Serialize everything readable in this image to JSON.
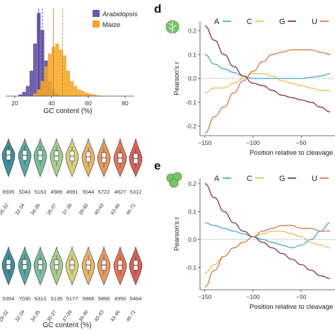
{
  "colors": {
    "arabidopsis": "#6a58a8",
    "maize": "#f5a623",
    "A": "#3aa3c4",
    "C": "#e8b84a",
    "G": "#7a2140",
    "U": "#d2703d",
    "leaf": "#7cc46a",
    "violin": [
      "#3f8f9a",
      "#5aa6a0",
      "#7cbf9a",
      "#a6cf8e",
      "#d6d27e",
      "#e7b56a",
      "#e79a5e",
      "#e2785a",
      "#d9605a"
    ]
  },
  "panel_labels": {
    "d": "d",
    "e": "e"
  },
  "icons": {
    "d": "leaf-icon",
    "e": "algae-cells-icon"
  },
  "chart_data": [
    {
      "id": "gc-histogram",
      "type": "bar",
      "xlabel": "GC content (%)",
      "x_ticks": [
        "20",
        "40",
        "60",
        "80"
      ],
      "xlim": [
        15,
        85
      ],
      "legend": [
        {
          "name": "Arabidopsis",
          "italic": true,
          "color_key": "arabidopsis"
        },
        {
          "name": "Maize",
          "italic": false,
          "color_key": "maize"
        }
      ],
      "legend_position": "top-right",
      "bin_width": 2,
      "series": [
        {
          "name": "Arabidopsis",
          "color_key": "arabidopsis",
          "bins": [
            [
              22,
              0.02
            ],
            [
              24,
              0.05
            ],
            [
              26,
              0.12
            ],
            [
              28,
              0.3
            ],
            [
              30,
              0.62
            ],
            [
              32,
              0.98
            ],
            [
              34,
              0.78
            ],
            [
              36,
              0.42
            ],
            [
              38,
              0.18
            ],
            [
              40,
              0.08
            ],
            [
              42,
              0.03
            ]
          ],
          "mean_line": 33,
          "median_line": 35
        },
        {
          "name": "Maize",
          "color_key": "maize",
          "bins": [
            [
              30,
              0.03
            ],
            [
              32,
              0.08
            ],
            [
              34,
              0.18
            ],
            [
              36,
              0.35
            ],
            [
              38,
              0.5
            ],
            [
              40,
              0.58
            ],
            [
              42,
              0.62
            ],
            [
              44,
              0.55
            ],
            [
              46,
              0.48
            ],
            [
              48,
              0.3
            ],
            [
              50,
              0.18
            ],
            [
              52,
              0.12
            ],
            [
              54,
              0.08
            ],
            [
              56,
              0.06
            ],
            [
              58,
              0.04
            ],
            [
              60,
              0.03
            ],
            [
              62,
              0.02
            ],
            [
              64,
              0.01
            ]
          ],
          "mean_line": 41,
          "median_line": 46
        }
      ]
    },
    {
      "id": "violins-top",
      "type": "violin",
      "categories": [
        "26-32",
        "32-34",
        "34-35",
        "35-37",
        "37-39",
        "39-40",
        "40-43",
        "43-46",
        "46-71"
      ],
      "counts": [
        "6935",
        "5043",
        "5163",
        "4989",
        "4991",
        "5044",
        "5722",
        "4827",
        "5312"
      ],
      "medians": [
        0.6,
        0.58,
        0.57,
        0.55,
        0.54,
        0.5,
        0.46,
        0.44,
        0.42
      ]
    },
    {
      "id": "violins-bottom",
      "type": "violin",
      "xlabel": "GC content (%)",
      "categories": [
        "29-32",
        "32-34",
        "34-35",
        "35-37",
        "37-39",
        "39-40",
        "40-43",
        "43-46",
        "46-71"
      ],
      "counts": [
        "5354",
        "7030",
        "5313",
        "5135",
        "5177",
        "5866",
        "5866",
        "4950",
        "5464"
      ],
      "medians": [
        0.52,
        0.52,
        0.51,
        0.51,
        0.5,
        0.5,
        0.5,
        0.49,
        0.49
      ]
    },
    {
      "id": "panel-d",
      "type": "line",
      "xlabel": "Position relative to cleavage si",
      "ylabel": "Pearson's r",
      "xlim": [
        -155,
        -15
      ],
      "ylim": [
        -0.24,
        0.24
      ],
      "x_ticks": [
        -150,
        -100,
        -50
      ],
      "y_ticks": [
        -0.2,
        -0.1,
        0,
        0.1,
        0.2
      ],
      "y_tick_labels": [
        "-0.2",
        "-0.1",
        "0.0",
        "0.1",
        "0.2"
      ],
      "legend": [
        "A",
        "C",
        "G",
        "U"
      ],
      "series": [
        {
          "name": "A",
          "color_key": "A",
          "x": [
            -150,
            -140,
            -130,
            -120,
            -110,
            -100,
            -90,
            -80,
            -70,
            -60,
            -50,
            -40,
            -30,
            -20
          ],
          "y": [
            0.1,
            0.06,
            0.04,
            0.025,
            0.01,
            0.0,
            0.0,
            0.0,
            0.0,
            0.0,
            0.0,
            0.005,
            0.01,
            0.02
          ]
        },
        {
          "name": "C",
          "color_key": "C",
          "x": [
            -150,
            -140,
            -130,
            -120,
            -110,
            -100,
            -90,
            -80,
            -70,
            -60,
            -50,
            -40,
            -30,
            -20
          ],
          "y": [
            -0.06,
            -0.04,
            -0.04,
            -0.02,
            0.0,
            0.02,
            0.02,
            0.01,
            -0.01,
            -0.02,
            -0.03,
            -0.04,
            -0.05,
            -0.05
          ]
        },
        {
          "name": "G",
          "color_key": "G",
          "x": [
            -150,
            -140,
            -130,
            -120,
            -110,
            -100,
            -90,
            -80,
            -70,
            -60,
            -50,
            -40,
            -30,
            -20
          ],
          "y": [
            0.22,
            0.16,
            0.1,
            0.05,
            0.01,
            -0.02,
            -0.03,
            -0.05,
            -0.07,
            -0.08,
            -0.09,
            -0.1,
            -0.12,
            -0.14
          ]
        },
        {
          "name": "U",
          "color_key": "U",
          "x": [
            -150,
            -140,
            -130,
            -120,
            -110,
            -100,
            -90,
            -80,
            -70,
            -60,
            -50,
            -40,
            -30,
            -20
          ],
          "y": [
            -0.23,
            -0.16,
            -0.12,
            -0.06,
            -0.01,
            0.03,
            0.07,
            0.1,
            0.11,
            0.12,
            0.12,
            0.12,
            0.11,
            0.1
          ]
        }
      ]
    },
    {
      "id": "panel-e",
      "type": "line",
      "xlabel": "Position relative to cleavage si",
      "ylabel": "Pearson's r",
      "xlim": [
        -155,
        -15
      ],
      "ylim": [
        -0.18,
        0.22
      ],
      "x_ticks": [
        -150,
        -100,
        -50
      ],
      "y_ticks": [
        -0.1,
        0,
        0.1,
        0.2
      ],
      "y_tick_labels": [
        "-0.1",
        "0.0",
        "0.1",
        "0.2"
      ],
      "legend": [
        "A",
        "C",
        "G",
        "U"
      ],
      "series": [
        {
          "name": "A",
          "color_key": "A",
          "x": [
            -150,
            -140,
            -130,
            -120,
            -110,
            -100,
            -90,
            -80,
            -70,
            -60,
            -50,
            -40,
            -30,
            -20
          ],
          "y": [
            0.06,
            0.05,
            0.04,
            0.03,
            0.02,
            0.01,
            0.0,
            -0.01,
            -0.02,
            -0.03,
            -0.02,
            0.0,
            0.03,
            0.06
          ]
        },
        {
          "name": "C",
          "color_key": "C",
          "x": [
            -150,
            -140,
            -130,
            -120,
            -110,
            -100,
            -90,
            -80,
            -70,
            -60,
            -50,
            -40,
            -30,
            -20
          ],
          "y": [
            -0.12,
            -0.09,
            -0.06,
            -0.03,
            -0.01,
            0.01,
            0.02,
            0.03,
            0.03,
            0.02,
            0.01,
            -0.01,
            -0.02,
            -0.03
          ]
        },
        {
          "name": "G",
          "color_key": "G",
          "x": [
            -150,
            -140,
            -130,
            -120,
            -110,
            -100,
            -90,
            -80,
            -70,
            -60,
            -50,
            -40,
            -30,
            -20
          ],
          "y": [
            0.2,
            0.15,
            0.1,
            0.06,
            0.03,
            0.01,
            -0.01,
            -0.03,
            -0.05,
            -0.07,
            -0.09,
            -0.11,
            -0.13,
            -0.14
          ]
        },
        {
          "name": "U",
          "color_key": "U",
          "x": [
            -150,
            -140,
            -130,
            -120,
            -110,
            -100,
            -90,
            -80,
            -70,
            -60,
            -50,
            -40,
            -30,
            -20
          ],
          "y": [
            -0.17,
            -0.11,
            -0.06,
            -0.03,
            -0.01,
            0.01,
            0.03,
            0.04,
            0.05,
            0.05,
            0.04,
            0.04,
            0.03,
            0.03
          ]
        }
      ]
    }
  ]
}
